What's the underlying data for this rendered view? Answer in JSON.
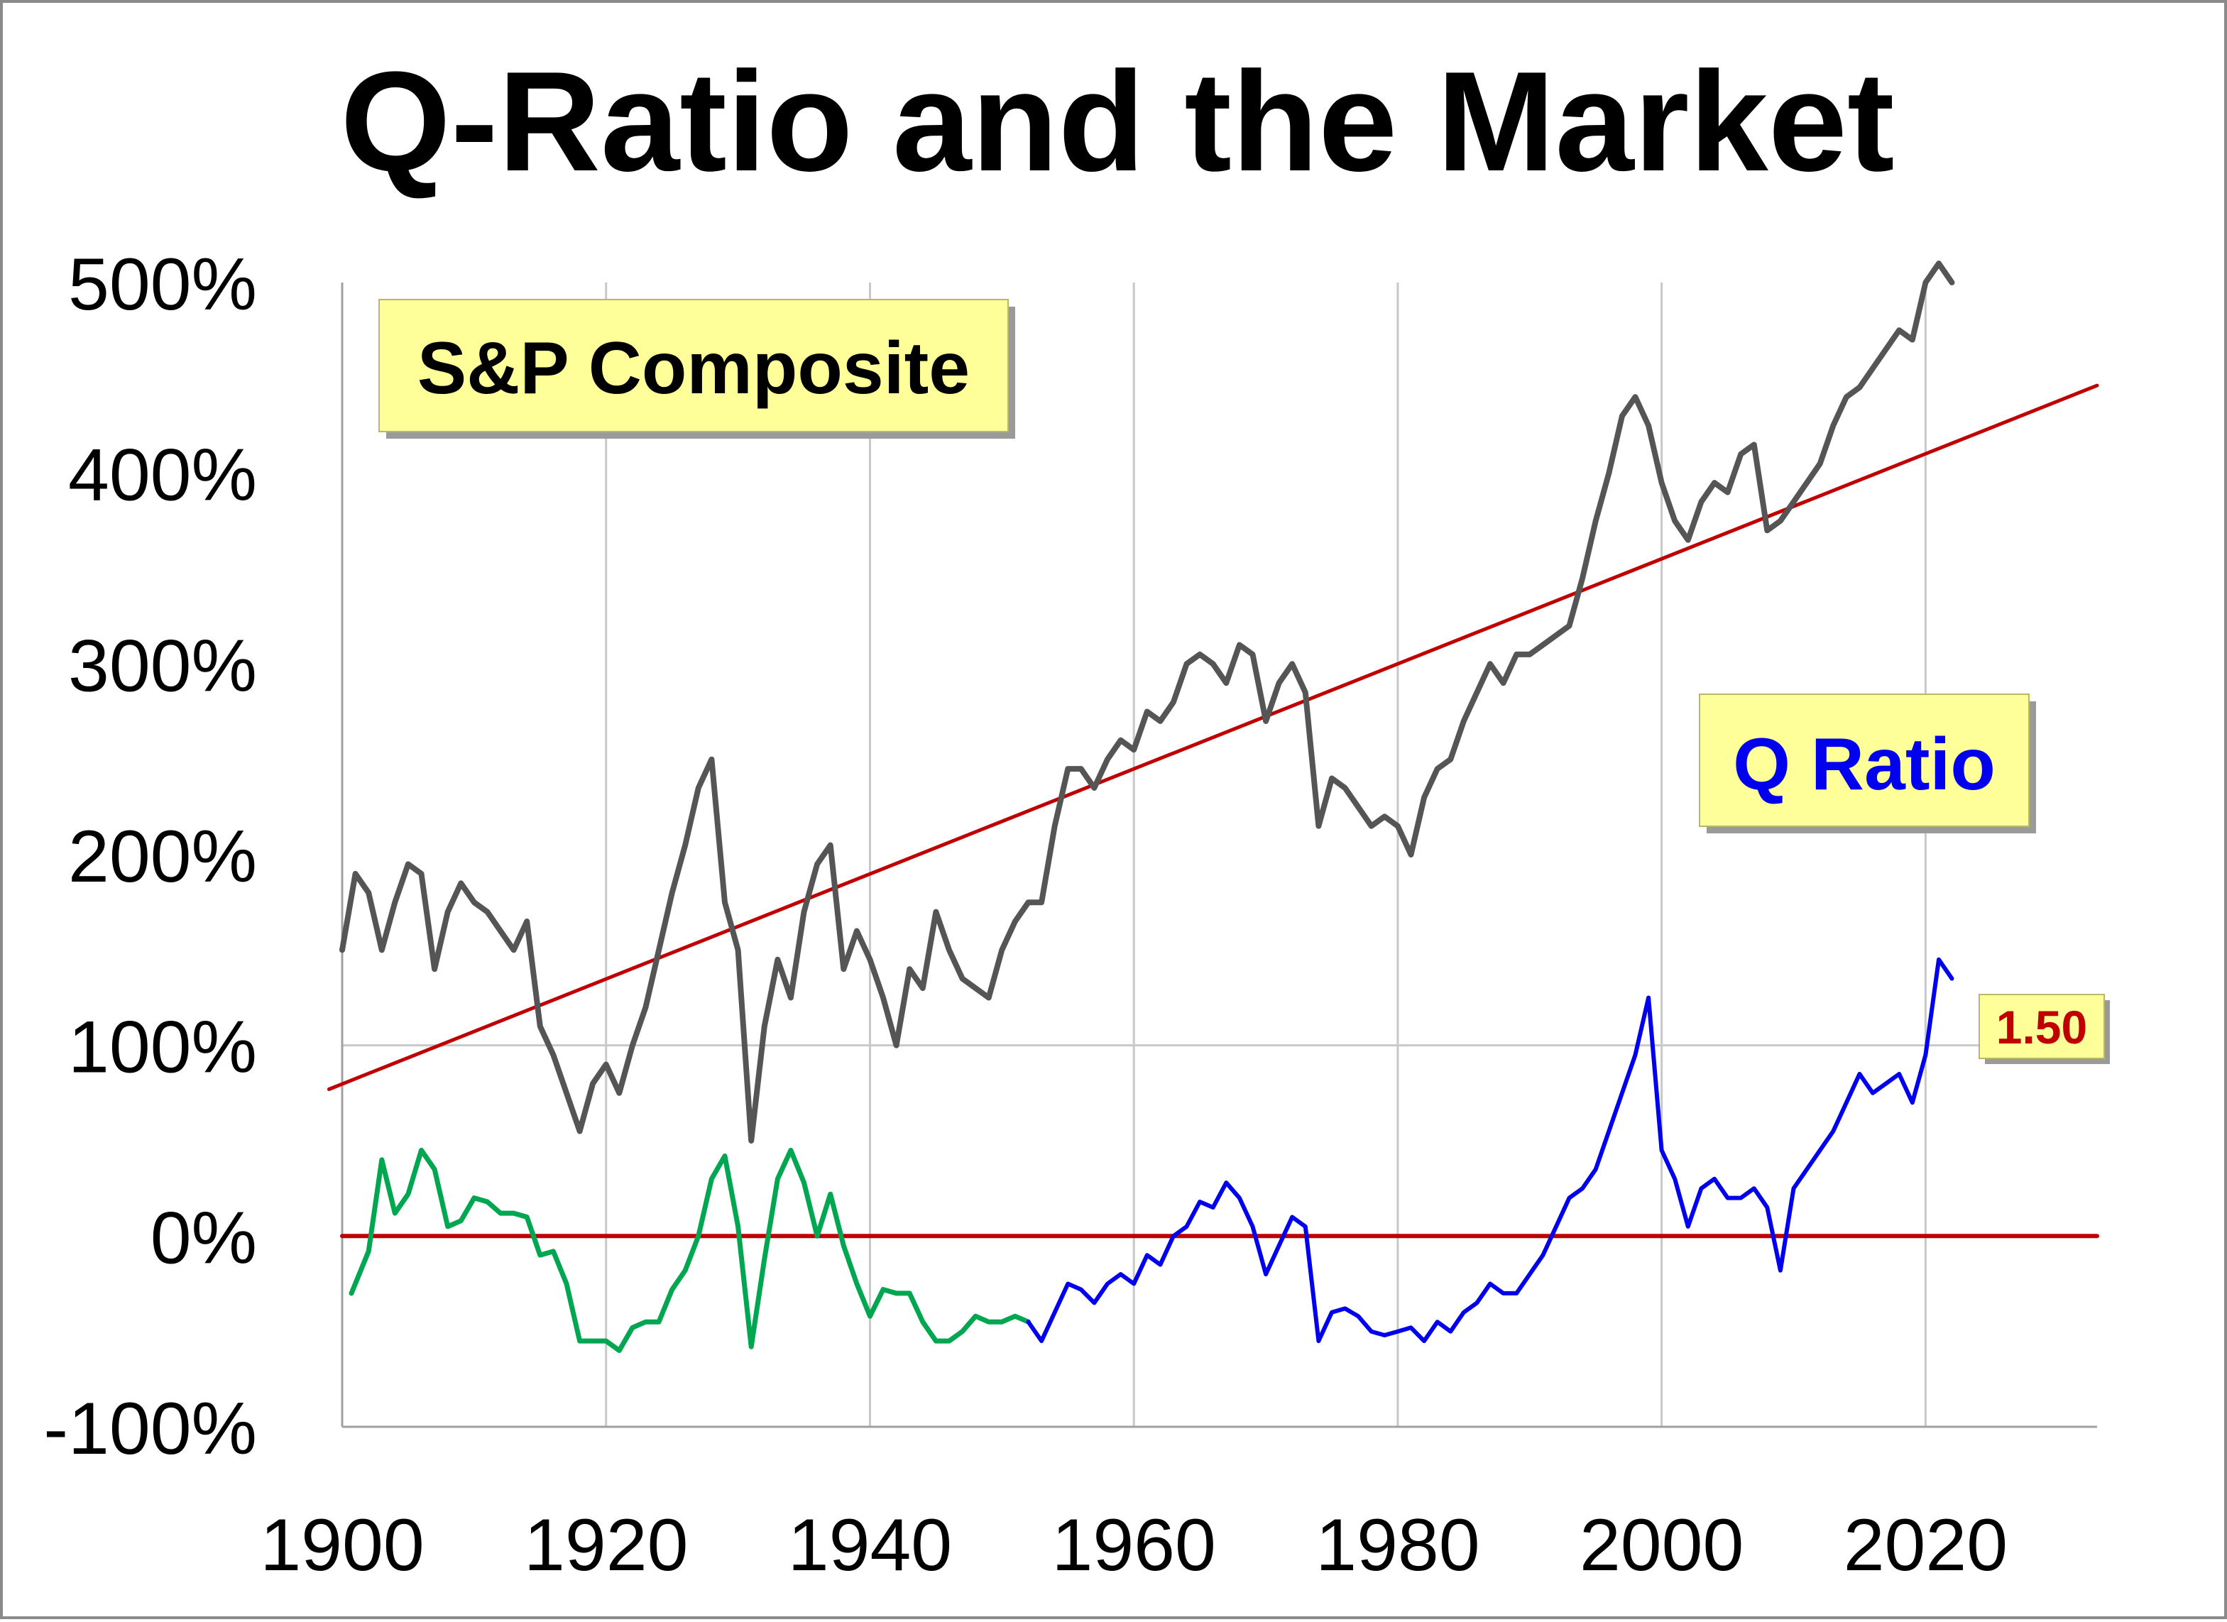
{
  "chart_data": {
    "type": "line",
    "title": "Q-Ratio and the Market",
    "xlabel": "",
    "ylabel": "",
    "xlim": [
      1900,
      2033
    ],
    "ylim": [
      -100,
      500
    ],
    "x_ticks": [
      1900,
      1920,
      1940,
      1960,
      1980,
      2000,
      2020
    ],
    "x_tick_labels": [
      "1900",
      "1920",
      "1940",
      "1960",
      "1980",
      "2000",
      "2020"
    ],
    "y_ticks": [
      -100,
      0,
      100,
      200,
      300,
      400,
      500
    ],
    "y_tick_labels": [
      "-100%",
      "0%",
      "100%",
      "200%",
      "300%",
      "400%",
      "500%"
    ],
    "grid": true,
    "annotations": {
      "sp_label": "S&P Composite",
      "q_label": "Q Ratio",
      "latest_value": "1.50"
    },
    "colors": {
      "sp": "#555555",
      "trend": "#c00000",
      "q_early": "#00a650",
      "q_late": "#0000ee",
      "label_box_fill": "#ffff99",
      "q_label_text": "#0000ee",
      "value_text": "#c00000"
    },
    "series": [
      {
        "name": "S&P Composite",
        "x": [
          1900,
          1901,
          1902,
          1903,
          1904,
          1905,
          1906,
          1907,
          1908,
          1909,
          1910,
          1911,
          1912,
          1913,
          1914,
          1915,
          1916,
          1917,
          1918,
          1919,
          1920,
          1921,
          1922,
          1923,
          1924,
          1925,
          1926,
          1927,
          1928,
          1929,
          1930,
          1931,
          1932,
          1933,
          1934,
          1935,
          1936,
          1937,
          1938,
          1939,
          1940,
          1941,
          1942,
          1943,
          1944,
          1945,
          1946,
          1947,
          1948,
          1949,
          1950,
          1951,
          1952,
          1953,
          1954,
          1955,
          1956,
          1957,
          1958,
          1959,
          1960,
          1961,
          1962,
          1963,
          1964,
          1965,
          1966,
          1967,
          1968,
          1969,
          1970,
          1971,
          1972,
          1973,
          1974,
          1975,
          1976,
          1977,
          1978,
          1979,
          1980,
          1981,
          1982,
          1983,
          1984,
          1985,
          1986,
          1987,
          1988,
          1989,
          1990,
          1991,
          1992,
          1993,
          1994,
          1995,
          1996,
          1997,
          1998,
          1999,
          2000,
          2001,
          2002,
          2003,
          2004,
          2005,
          2006,
          2007,
          2008,
          2009,
          2010,
          2011,
          2012,
          2013,
          2014,
          2015,
          2016,
          2017,
          2018,
          2019,
          2020,
          2021,
          2022
        ],
        "values": [
          150,
          190,
          180,
          150,
          175,
          195,
          190,
          140,
          170,
          185,
          175,
          170,
          160,
          150,
          165,
          110,
          95,
          75,
          55,
          80,
          90,
          75,
          100,
          120,
          150,
          180,
          205,
          235,
          250,
          175,
          150,
          50,
          110,
          145,
          125,
          170,
          195,
          205,
          140,
          160,
          145,
          125,
          100,
          140,
          130,
          170,
          150,
          135,
          130,
          125,
          150,
          165,
          175,
          175,
          215,
          245,
          245,
          235,
          250,
          260,
          255,
          275,
          270,
          280,
          300,
          305,
          300,
          290,
          310,
          305,
          270,
          290,
          300,
          285,
          215,
          240,
          235,
          225,
          215,
          220,
          215,
          200,
          230,
          245,
          250,
          270,
          285,
          300,
          290,
          305,
          305,
          310,
          315,
          320,
          345,
          375,
          400,
          430,
          440,
          425,
          395,
          375,
          365,
          385,
          395,
          390,
          410,
          415,
          370,
          375,
          385,
          395,
          405,
          425,
          440,
          445,
          455,
          465,
          475,
          470,
          500,
          510,
          500
        ],
        "color": "#555555"
      },
      {
        "name": "Q Ratio (early, green)",
        "x": [
          1900.7,
          1902,
          1903,
          1904,
          1905,
          1906,
          1907,
          1908,
          1909,
          1910,
          1911,
          1912,
          1913,
          1914,
          1915,
          1916,
          1917,
          1918,
          1919,
          1920,
          1921,
          1922,
          1923,
          1924,
          1925,
          1926,
          1927,
          1928,
          1929,
          1930,
          1931,
          1932,
          1933,
          1934,
          1935,
          1936,
          1937,
          1938,
          1939,
          1940,
          1941,
          1942,
          1943,
          1944,
          1945,
          1946,
          1947,
          1948,
          1949,
          1950,
          1951,
          1952
        ],
        "values": [
          -30,
          -8,
          40,
          12,
          22,
          45,
          35,
          5,
          8,
          20,
          18,
          12,
          12,
          10,
          -10,
          -8,
          -25,
          -55,
          -55,
          -55,
          -60,
          -48,
          -45,
          -45,
          -28,
          -18,
          0,
          30,
          42,
          5,
          -58,
          -12,
          30,
          45,
          28,
          0,
          22,
          -5,
          -25,
          -42,
          -28,
          -30,
          -30,
          -45,
          -55,
          -55,
          -50,
          -42,
          -45,
          -45,
          -42,
          -45
        ],
        "color": "#00a650"
      },
      {
        "name": "Q Ratio (late, blue)",
        "x": [
          1952,
          1953,
          1954,
          1955,
          1956,
          1957,
          1958,
          1959,
          1960,
          1961,
          1962,
          1963,
          1964,
          1965,
          1966,
          1967,
          1968,
          1969,
          1970,
          1971,
          1972,
          1973,
          1974,
          1975,
          1976,
          1977,
          1978,
          1979,
          1980,
          1981,
          1982,
          1983,
          1984,
          1985,
          1986,
          1987,
          1988,
          1989,
          1990,
          1991,
          1992,
          1993,
          1994,
          1995,
          1996,
          1997,
          1998,
          1999,
          2000,
          2001,
          2002,
          2003,
          2004,
          2005,
          2006,
          2007,
          2008,
          2009,
          2010,
          2011,
          2012,
          2013,
          2014,
          2015,
          2016,
          2017,
          2018,
          2019,
          2020,
          2021,
          2022
        ],
        "values": [
          -45,
          -55,
          -40,
          -25,
          -28,
          -35,
          -25,
          -20,
          -25,
          -10,
          -15,
          0,
          5,
          18,
          15,
          28,
          20,
          5,
          -20,
          -5,
          10,
          5,
          -55,
          -40,
          -38,
          -42,
          -50,
          -52,
          -50,
          -48,
          -55,
          -45,
          -50,
          -40,
          -35,
          -25,
          -30,
          -30,
          -20,
          -10,
          5,
          20,
          25,
          35,
          55,
          75,
          95,
          125,
          45,
          30,
          5,
          25,
          30,
          20,
          20,
          25,
          15,
          -18,
          25,
          35,
          45,
          55,
          70,
          85,
          75,
          80,
          85,
          70,
          95,
          145,
          135
        ],
        "color": "#0000ee"
      },
      {
        "name": "Trend",
        "x": [
          1899,
          2033
        ],
        "values": [
          77,
          446
        ],
        "color": "#c00000"
      },
      {
        "name": "Zero line",
        "x": [
          1900,
          2033
        ],
        "values": [
          0,
          0
        ],
        "color": "#c00000"
      }
    ]
  }
}
